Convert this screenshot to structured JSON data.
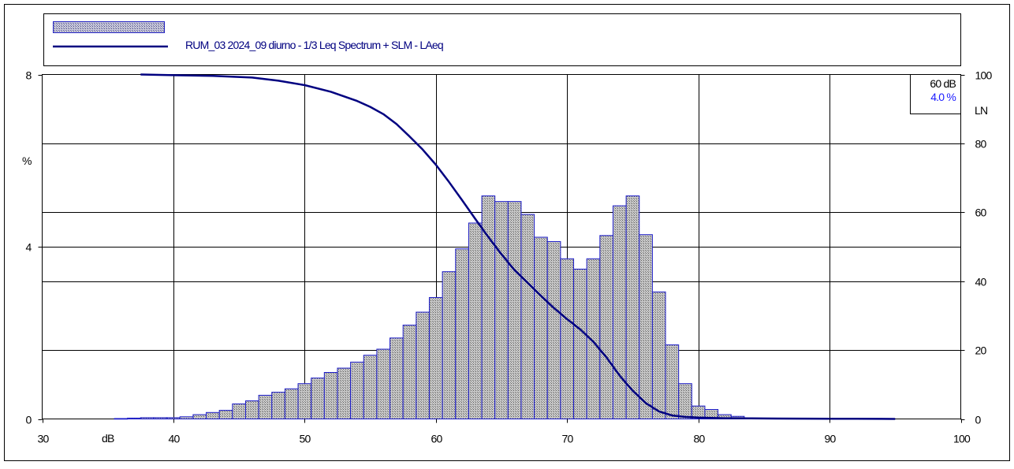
{
  "chart_data": {
    "type": "bar",
    "legend": {
      "series_label": "RUM_03 2024_09 diurno - 1/3 Leq Spectrum + SLM - LAeq",
      "placement": "top"
    },
    "x_axis": {
      "unit_label": "dB",
      "range": [
        30,
        100
      ],
      "ticks": [
        "30",
        "40",
        "50",
        "60",
        "70",
        "80",
        "90",
        "100"
      ]
    },
    "y_axis_left": {
      "label": "%",
      "range": [
        0,
        8
      ],
      "ticks": [
        "0",
        "4",
        "8"
      ]
    },
    "y_axis_right": {
      "label": "LN",
      "range": [
        0,
        100
      ],
      "ticks": [
        "0",
        "20",
        "40",
        "60",
        "80",
        "100"
      ]
    },
    "grid": true,
    "histogram": {
      "bin_width": 1,
      "x": [
        36,
        37,
        38,
        39,
        40,
        41,
        42,
        43,
        44,
        45,
        46,
        47,
        48,
        49,
        50,
        51,
        52,
        53,
        54,
        55,
        56,
        57,
        58,
        59,
        60,
        61,
        62,
        63,
        64,
        65,
        66,
        67,
        68,
        69,
        70,
        71,
        72,
        73,
        74,
        75,
        76,
        77,
        78,
        79,
        80,
        81,
        82,
        83,
        84
      ],
      "values": [
        0.01,
        0.02,
        0.03,
        0.03,
        0.03,
        0.05,
        0.1,
        0.15,
        0.2,
        0.35,
        0.42,
        0.55,
        0.62,
        0.7,
        0.82,
        0.95,
        1.08,
        1.18,
        1.32,
        1.48,
        1.62,
        1.88,
        2.18,
        2.48,
        2.82,
        3.42,
        3.95,
        4.55,
        5.18,
        5.05,
        5.05,
        4.75,
        4.22,
        4.12,
        3.72,
        3.48,
        3.72,
        4.26,
        4.95,
        5.18,
        4.28,
        2.95,
        1.72,
        0.82,
        0.3,
        0.22,
        0.1,
        0.06,
        0.02
      ]
    },
    "cumulative_ln": {
      "name": "LN",
      "x": [
        37.5,
        40,
        43,
        46,
        48,
        50,
        52,
        54,
        55,
        56,
        57,
        58,
        59,
        60,
        61,
        62,
        63,
        64,
        65,
        66,
        67,
        68,
        69,
        70,
        71,
        72,
        73,
        74,
        75,
        76,
        77,
        78,
        79,
        80,
        81,
        82,
        84,
        86,
        88,
        90,
        92,
        94,
        95
      ],
      "values": [
        100,
        99.8,
        99.6,
        99.1,
        98.2,
        96.9,
        95.0,
        92.3,
        90.6,
        88.5,
        85.6,
        82.0,
        78.2,
        73.8,
        68.8,
        63.5,
        58.1,
        52.8,
        47.8,
        43.2,
        39.5,
        35.8,
        32.2,
        29.0,
        26.0,
        22.4,
        17.9,
        12.6,
        8.2,
        4.6,
        2.2,
        1.0,
        0.6,
        0.4,
        0.3,
        0.2,
        0.15,
        0.12,
        0.1,
        0.08,
        0.05,
        0.02,
        0.0
      ]
    },
    "readout": {
      "level": "60 dB",
      "percent": "4.0 %"
    }
  }
}
